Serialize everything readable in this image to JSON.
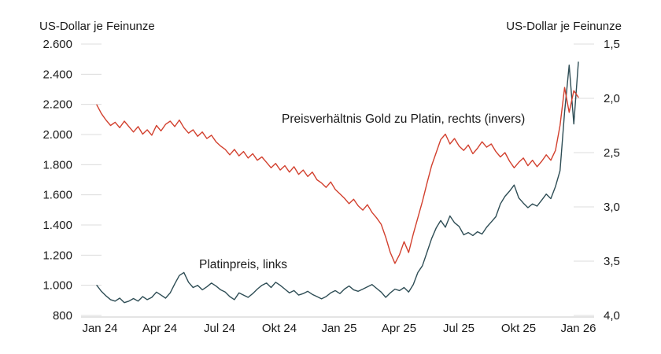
{
  "chart_data": {
    "type": "line",
    "title": "",
    "grid_color": "#dcdcdc",
    "axis_color": "#c8c8c8",
    "text_color": "#1a1a1a",
    "left_axis": {
      "title": "US-Dollar je Feinunze",
      "range": [
        800,
        2600
      ],
      "ticks": [
        {
          "value": 2600,
          "label": "2.600"
        },
        {
          "value": 2400,
          "label": "2.400"
        },
        {
          "value": 2200,
          "label": "2.200"
        },
        {
          "value": 2000,
          "label": "2.000"
        },
        {
          "value": 1800,
          "label": "1.800"
        },
        {
          "value": 1600,
          "label": "1.600"
        },
        {
          "value": 1400,
          "label": "1.400"
        },
        {
          "value": 1200,
          "label": "1.200"
        },
        {
          "value": 1000,
          "label": "1.000"
        },
        {
          "value": 800,
          "label": "800"
        }
      ]
    },
    "right_axis": {
      "title": "US-Dollar je Feinunze",
      "inverted": true,
      "range": [
        1.5,
        4.0
      ],
      "ticks": [
        {
          "value": 1.5,
          "label": "1,5"
        },
        {
          "value": 2.0,
          "label": "2,0"
        },
        {
          "value": 2.5,
          "label": "2,5"
        },
        {
          "value": 3.0,
          "label": "3,0"
        },
        {
          "value": 3.5,
          "label": "3,5"
        },
        {
          "value": 4.0,
          "label": "4,0"
        }
      ]
    },
    "x_axis": {
      "tick_labels": [
        "Jan 24",
        "Apr 24",
        "Jul 24",
        "Okt 24",
        "Jan 25",
        "Apr 25",
        "Jul 25",
        "Okt 25",
        "Jan 26"
      ],
      "frequency": "weekly"
    },
    "series": [
      {
        "name": "Platinpreis, links",
        "axis": "left",
        "color": "#2e4d55",
        "values": [
          1000,
          960,
          930,
          905,
          895,
          915,
          885,
          895,
          912,
          895,
          925,
          905,
          920,
          955,
          935,
          915,
          950,
          1010,
          1065,
          1085,
          1020,
          985,
          1000,
          970,
          990,
          1015,
          995,
          970,
          955,
          925,
          905,
          950,
          935,
          920,
          945,
          975,
          1000,
          1015,
          985,
          1020,
          1000,
          975,
          950,
          965,
          935,
          945,
          960,
          940,
          925,
          910,
          925,
          950,
          965,
          945,
          975,
          995,
          970,
          960,
          975,
          990,
          1005,
          980,
          955,
          920,
          950,
          975,
          965,
          985,
          955,
          1005,
          1085,
          1130,
          1220,
          1310,
          1380,
          1430,
          1385,
          1460,
          1415,
          1390,
          1335,
          1350,
          1330,
          1355,
          1340,
          1385,
          1420,
          1455,
          1540,
          1590,
          1625,
          1665,
          1580,
          1545,
          1515,
          1540,
          1525,
          1565,
          1605,
          1575,
          1655,
          1760,
          2150,
          2460,
          2070,
          2480
        ]
      },
      {
        "name": "Preisverhältnis Gold zu Platin, rechts (invers)",
        "axis": "right",
        "color": "#d2402e",
        "values": [
          2.06,
          2.14,
          2.2,
          2.25,
          2.22,
          2.27,
          2.21,
          2.26,
          2.31,
          2.26,
          2.33,
          2.29,
          2.34,
          2.25,
          2.3,
          2.24,
          2.21,
          2.26,
          2.2,
          2.27,
          2.32,
          2.29,
          2.35,
          2.31,
          2.37,
          2.34,
          2.4,
          2.44,
          2.47,
          2.52,
          2.47,
          2.53,
          2.49,
          2.55,
          2.51,
          2.57,
          2.54,
          2.59,
          2.64,
          2.6,
          2.66,
          2.62,
          2.68,
          2.63,
          2.7,
          2.66,
          2.72,
          2.68,
          2.75,
          2.78,
          2.82,
          2.77,
          2.84,
          2.88,
          2.92,
          2.97,
          2.93,
          2.99,
          3.03,
          2.98,
          3.05,
          3.1,
          3.16,
          3.28,
          3.42,
          3.52,
          3.44,
          3.32,
          3.42,
          3.25,
          3.1,
          2.95,
          2.78,
          2.62,
          2.5,
          2.38,
          2.33,
          2.42,
          2.37,
          2.44,
          2.48,
          2.43,
          2.51,
          2.46,
          2.4,
          2.45,
          2.42,
          2.49,
          2.54,
          2.5,
          2.58,
          2.64,
          2.59,
          2.55,
          2.62,
          2.57,
          2.63,
          2.58,
          2.52,
          2.57,
          2.48,
          2.25,
          1.9,
          2.13,
          1.93,
          1.99
        ]
      }
    ]
  }
}
